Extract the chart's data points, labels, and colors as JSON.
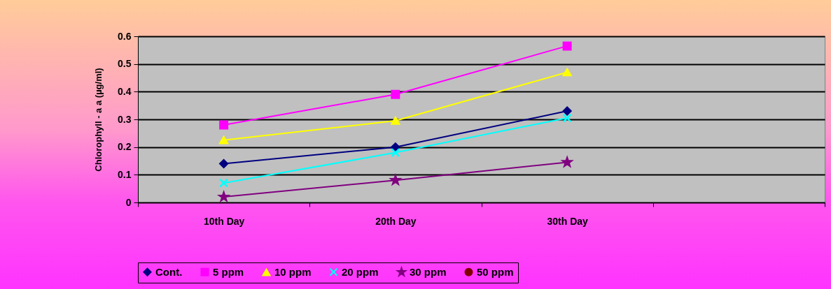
{
  "chart_data": {
    "type": "line",
    "ylabel": "Chlorophyll - a a  (µg/ml)",
    "categories": [
      "10th Day",
      "20th Day",
      "30th Day",
      null
    ],
    "ylim": [
      0,
      0.6
    ],
    "yticks": [
      0,
      0.1,
      0.2,
      0.3,
      0.4,
      0.5,
      0.6
    ],
    "grid": "y",
    "legend": "bottom",
    "series": [
      {
        "name": "Cont.",
        "color": "#000080",
        "marker": "diamond",
        "values": [
          0.14,
          0.2,
          0.33,
          null
        ]
      },
      {
        "name": "5 ppm",
        "color": "#ff00ff",
        "marker": "square",
        "values": [
          0.28,
          0.39,
          0.565,
          null
        ]
      },
      {
        "name": "10 ppm",
        "color": "#ffff00",
        "marker": "triangle",
        "values": [
          0.225,
          0.295,
          0.47,
          null
        ]
      },
      {
        "name": "20 ppm",
        "color": "#00ffff",
        "marker": "cross",
        "values": [
          0.07,
          0.18,
          0.305,
          null
        ]
      },
      {
        "name": "30 ppm",
        "color": "#800080",
        "marker": "star",
        "values": [
          0.02,
          0.08,
          0.145,
          null
        ]
      },
      {
        "name": "50 ppm",
        "color": "#800000",
        "marker": "circle",
        "values": [
          null,
          null,
          null,
          null
        ]
      }
    ]
  }
}
